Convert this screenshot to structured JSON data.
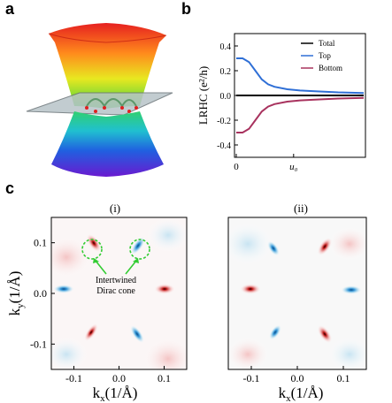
{
  "panels": {
    "a": "a",
    "b": "b",
    "c": "c"
  },
  "chart_data": [
    {
      "type": "line",
      "panel": "b",
      "ylabel": "LRHC (e²/h)",
      "xtick_labels": [
        "0",
        "u₀"
      ],
      "yticks": [
        "0.4",
        "0.2",
        "0.0",
        "-0.2",
        "-0.4"
      ],
      "ylim": [
        -0.5,
        0.5
      ],
      "series": [
        {
          "name": "Total",
          "color": "#000000",
          "x": [
            0,
            0.05,
            0.1,
            0.2,
            0.3,
            0.4,
            0.5,
            0.6,
            0.8,
            1.0
          ],
          "values": [
            0,
            0,
            0,
            0,
            0,
            0,
            0,
            0,
            0,
            0
          ]
        },
        {
          "name": "Top",
          "color": "#2f6fd6",
          "x": [
            0,
            0.05,
            0.1,
            0.15,
            0.2,
            0.25,
            0.3,
            0.4,
            0.5,
            0.6,
            0.8,
            1.0
          ],
          "values": [
            0.3,
            0.3,
            0.27,
            0.2,
            0.13,
            0.09,
            0.07,
            0.05,
            0.04,
            0.035,
            0.025,
            0.02
          ]
        },
        {
          "name": "Bottom",
          "color": "#a8325e",
          "x": [
            0,
            0.05,
            0.1,
            0.15,
            0.2,
            0.25,
            0.3,
            0.4,
            0.5,
            0.6,
            0.8,
            1.0
          ],
          "values": [
            -0.3,
            -0.3,
            -0.27,
            -0.2,
            -0.13,
            -0.09,
            -0.07,
            -0.05,
            -0.04,
            -0.035,
            -0.025,
            -0.02
          ]
        }
      ],
      "legend": "top-right"
    },
    {
      "type": "heatmap",
      "panel": "c",
      "subplots": [
        {
          "title": "(i)",
          "xlabel": "kx(1/Å)",
          "ylabel": "ky(1/Å)",
          "xticks": [
            "-0.1",
            "0.0",
            "0.1"
          ],
          "yticks": [
            "0.1",
            "0.0",
            "-0.1"
          ],
          "annotation": [
            "Intertwined",
            "Dirac cone"
          ]
        },
        {
          "title": "(ii)",
          "xlabel": "kx(1/Å)",
          "xticks": [
            "-0.1",
            "0.0",
            "0.1"
          ]
        }
      ]
    }
  ]
}
